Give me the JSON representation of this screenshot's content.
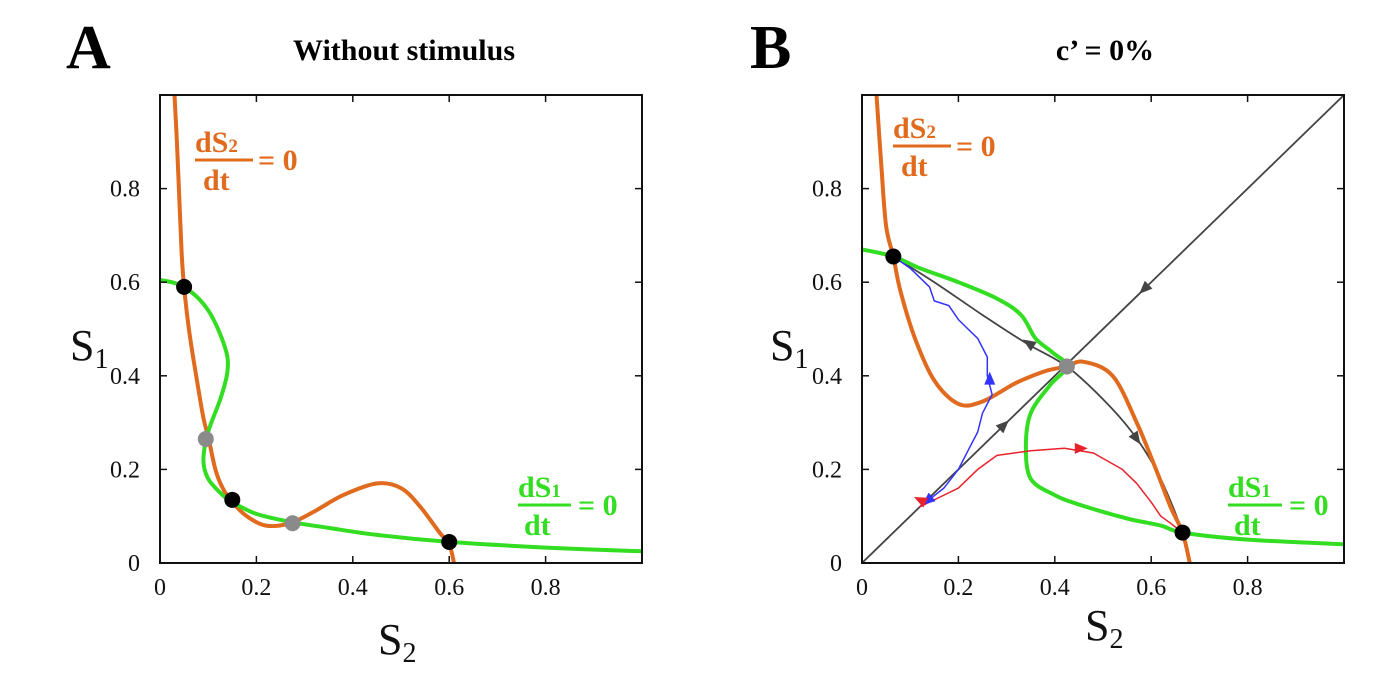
{
  "panels": [
    {
      "letter": "A",
      "title": "Without stimulus"
    },
    {
      "letter": "B",
      "title": "c’ = 0%"
    }
  ],
  "axes": {
    "xlabel_main": "S",
    "xlabel_sub": "2",
    "ylabel_main": "S",
    "ylabel_sub": "1"
  },
  "nullcline_labels": {
    "s2_num_main": "dS",
    "s2_num_sub": "2",
    "s2_den": "dt",
    "s2_rhs": "= 0",
    "s1_num_main": "dS",
    "s1_num_sub": "1",
    "s1_den": "dt",
    "s1_rhs": "= 0"
  },
  "colors": {
    "dS2_nullcline": "#E06A1E",
    "dS1_nullcline": "#33DD22",
    "stable": "#000000",
    "unstable": "#8A8A8A",
    "trajectory_blue": "#3333FF",
    "trajectory_red": "#E8222A",
    "manifold": "#444444"
  },
  "chart_data": [
    {
      "type": "line",
      "panel": "A",
      "title": "Without stimulus",
      "xlabel": "S2",
      "ylabel": "S1",
      "xlim": [
        0,
        1
      ],
      "ylim": [
        0,
        1
      ],
      "xticks": [
        "0",
        "0.2",
        "0.4",
        "0.6",
        "0.8"
      ],
      "yticks": [
        "0",
        "0.2",
        "0.4",
        "0.6",
        "0.8"
      ],
      "series": [
        {
          "name": "dS2/dt = 0",
          "points": [
            [
              0.03,
              1.0
            ],
            [
              0.035,
              0.9
            ],
            [
              0.04,
              0.78
            ],
            [
              0.045,
              0.66
            ],
            [
              0.05,
              0.59
            ],
            [
              0.06,
              0.5
            ],
            [
              0.075,
              0.4
            ],
            [
              0.09,
              0.31
            ],
            [
              0.1,
              0.27
            ],
            [
              0.115,
              0.2
            ],
            [
              0.13,
              0.16
            ],
            [
              0.15,
              0.13
            ],
            [
              0.18,
              0.1
            ],
            [
              0.22,
              0.08
            ],
            [
              0.27,
              0.085
            ],
            [
              0.32,
              0.11
            ],
            [
              0.38,
              0.145
            ],
            [
              0.45,
              0.17
            ],
            [
              0.5,
              0.16
            ],
            [
              0.54,
              0.12
            ],
            [
              0.58,
              0.065
            ],
            [
              0.6,
              0.04
            ],
            [
              0.61,
              0.0
            ]
          ]
        },
        {
          "name": "dS1/dt = 0",
          "points": [
            [
              0.0,
              0.605
            ],
            [
              0.05,
              0.59
            ],
            [
              0.1,
              0.54
            ],
            [
              0.135,
              0.46
            ],
            [
              0.14,
              0.41
            ],
            [
              0.125,
              0.35
            ],
            [
              0.1,
              0.28
            ],
            [
              0.09,
              0.22
            ],
            [
              0.1,
              0.18
            ],
            [
              0.13,
              0.145
            ],
            [
              0.15,
              0.13
            ],
            [
              0.2,
              0.105
            ],
            [
              0.27,
              0.088
            ],
            [
              0.35,
              0.075
            ],
            [
              0.45,
              0.06
            ],
            [
              0.6,
              0.045
            ],
            [
              0.8,
              0.033
            ],
            [
              1.0,
              0.025
            ]
          ]
        }
      ],
      "fixed_points": {
        "stable": [
          [
            0.05,
            0.59
          ],
          [
            0.15,
            0.135
          ],
          [
            0.6,
            0.045
          ]
        ],
        "unstable": [
          [
            0.095,
            0.265
          ],
          [
            0.275,
            0.085
          ]
        ]
      }
    },
    {
      "type": "line",
      "panel": "B",
      "title": "c’ = 0%",
      "xlabel": "S2",
      "ylabel": "S1",
      "xlim": [
        0,
        1
      ],
      "ylim": [
        0,
        1
      ],
      "xticks": [
        "0",
        "0.2",
        "0.4",
        "0.6",
        "0.8"
      ],
      "yticks": [
        "0",
        "0.2",
        "0.4",
        "0.6",
        "0.8"
      ],
      "series": [
        {
          "name": "dS2/dt = 0",
          "points": [
            [
              0.03,
              1.0
            ],
            [
              0.04,
              0.85
            ],
            [
              0.05,
              0.72
            ],
            [
              0.065,
              0.655
            ],
            [
              0.08,
              0.58
            ],
            [
              0.11,
              0.48
            ],
            [
              0.15,
              0.39
            ],
            [
              0.2,
              0.34
            ],
            [
              0.25,
              0.345
            ],
            [
              0.32,
              0.385
            ],
            [
              0.38,
              0.41
            ],
            [
              0.425,
              0.42
            ],
            [
              0.46,
              0.43
            ],
            [
              0.52,
              0.4
            ],
            [
              0.57,
              0.3
            ],
            [
              0.61,
              0.2
            ],
            [
              0.64,
              0.12
            ],
            [
              0.665,
              0.065
            ],
            [
              0.68,
              0.0
            ]
          ]
        },
        {
          "name": "dS1/dt = 0",
          "points": [
            [
              0.0,
              0.67
            ],
            [
              0.065,
              0.655
            ],
            [
              0.12,
              0.63
            ],
            [
              0.2,
              0.6
            ],
            [
              0.28,
              0.565
            ],
            [
              0.33,
              0.53
            ],
            [
              0.36,
              0.48
            ],
            [
              0.395,
              0.45
            ],
            [
              0.425,
              0.42
            ],
            [
              0.39,
              0.38
            ],
            [
              0.35,
              0.32
            ],
            [
              0.34,
              0.25
            ],
            [
              0.35,
              0.18
            ],
            [
              0.4,
              0.145
            ],
            [
              0.45,
              0.125
            ],
            [
              0.55,
              0.095
            ],
            [
              0.62,
              0.08
            ],
            [
              0.665,
              0.065
            ],
            [
              0.8,
              0.05
            ],
            [
              1.0,
              0.04
            ]
          ]
        },
        {
          "name": "diagonal",
          "points": [
            [
              0.0,
              0.0
            ],
            [
              1.0,
              1.0
            ]
          ]
        },
        {
          "name": "unstable manifold",
          "points": [
            [
              0.065,
              0.655
            ],
            [
              0.15,
              0.6
            ],
            [
              0.25,
              0.53
            ],
            [
              0.34,
              0.47
            ],
            [
              0.425,
              0.42
            ],
            [
              0.5,
              0.35
            ],
            [
              0.56,
              0.28
            ],
            [
              0.61,
              0.2
            ],
            [
              0.645,
              0.12
            ],
            [
              0.665,
              0.065
            ]
          ]
        },
        {
          "name": "trajectory blue",
          "points": [
            [
              0.065,
              0.655
            ],
            [
              0.1,
              0.63
            ],
            [
              0.14,
              0.59
            ],
            [
              0.15,
              0.56
            ],
            [
              0.18,
              0.55
            ],
            [
              0.2,
              0.52
            ],
            [
              0.22,
              0.5
            ],
            [
              0.24,
              0.48
            ],
            [
              0.26,
              0.44
            ],
            [
              0.26,
              0.4
            ],
            [
              0.27,
              0.36
            ],
            [
              0.25,
              0.32
            ],
            [
              0.24,
              0.28
            ],
            [
              0.22,
              0.24
            ],
            [
              0.2,
              0.2
            ],
            [
              0.17,
              0.16
            ],
            [
              0.12,
              0.12
            ]
          ]
        },
        {
          "name": "trajectory red",
          "points": [
            [
              0.12,
              0.12
            ],
            [
              0.16,
              0.14
            ],
            [
              0.2,
              0.16
            ],
            [
              0.24,
              0.2
            ],
            [
              0.28,
              0.23
            ],
            [
              0.35,
              0.24
            ],
            [
              0.42,
              0.245
            ],
            [
              0.48,
              0.235
            ],
            [
              0.54,
              0.2
            ],
            [
              0.57,
              0.17
            ],
            [
              0.6,
              0.13
            ],
            [
              0.62,
              0.1
            ],
            [
              0.64,
              0.085
            ],
            [
              0.665,
              0.065
            ]
          ]
        }
      ],
      "fixed_points": {
        "stable": [
          [
            0.065,
            0.655
          ],
          [
            0.665,
            0.065
          ]
        ],
        "unstable": [
          [
            0.425,
            0.42
          ]
        ]
      }
    }
  ]
}
